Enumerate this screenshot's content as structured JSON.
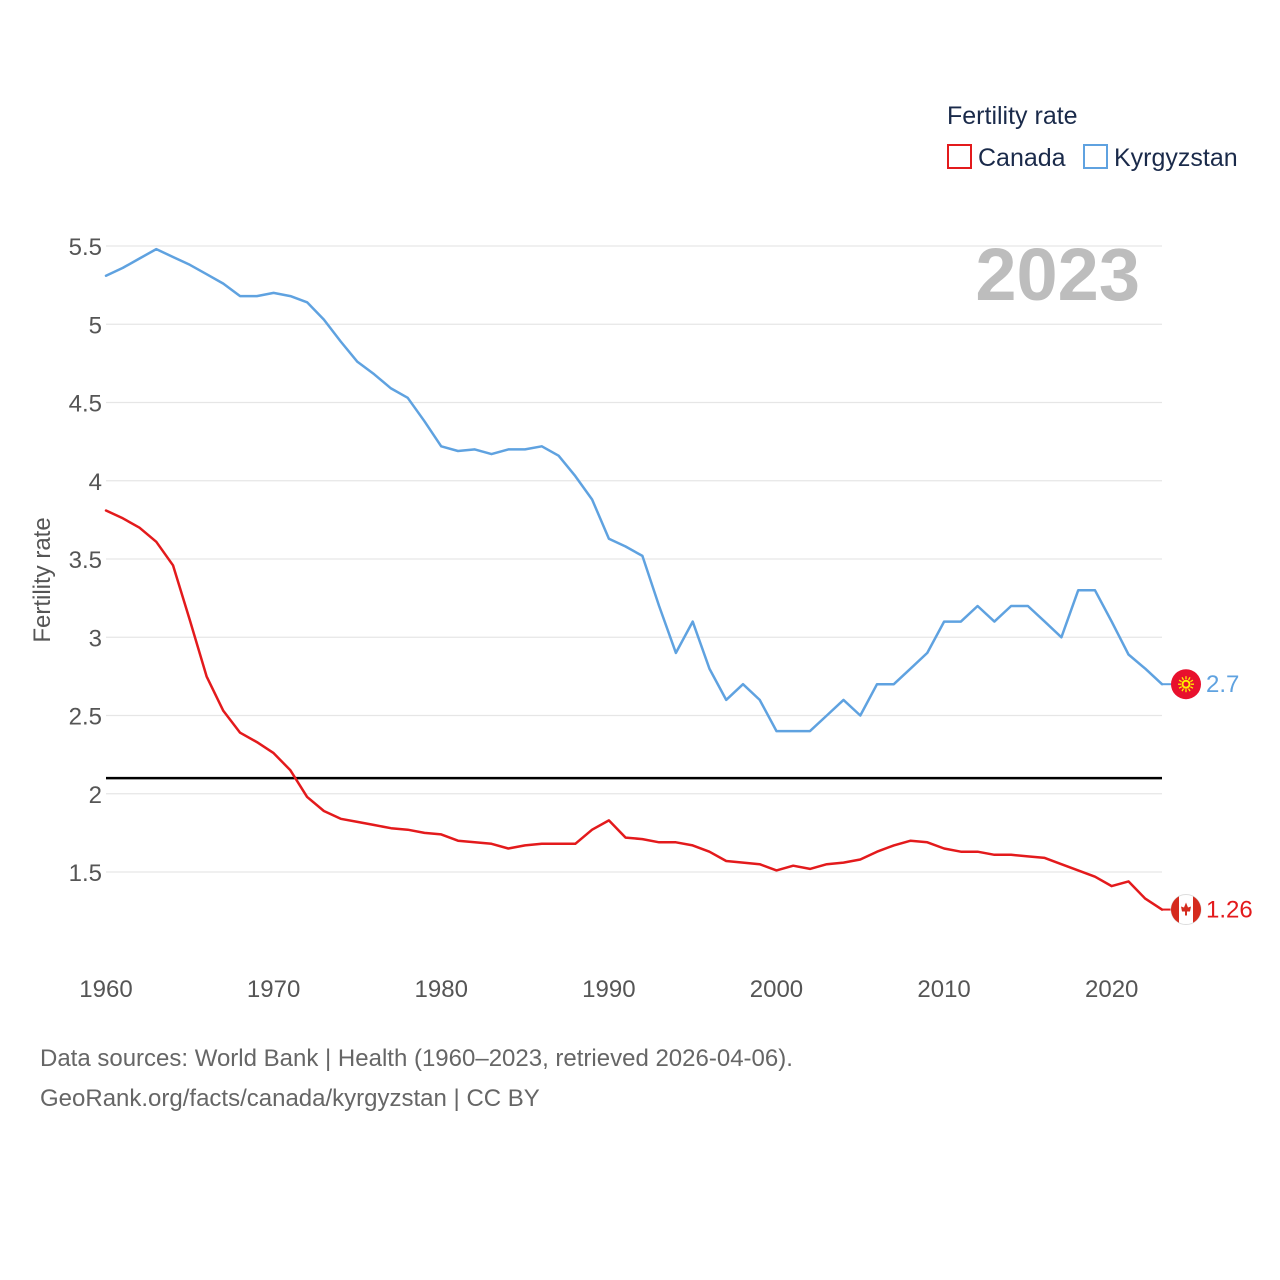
{
  "chart_data": {
    "type": "line",
    "title": "",
    "ylabel": "Fertility rate",
    "xlabel": "",
    "xlim": [
      1960,
      2023
    ],
    "ylim": [
      1.0,
      5.6
    ],
    "y_ticks": [
      1.5,
      2,
      2.5,
      3,
      3.5,
      4,
      4.5,
      5,
      5.5
    ],
    "y_tick_labels": [
      "1.5",
      "2",
      "2.5",
      "3",
      "3.5",
      "4",
      "4.5",
      "5",
      "5.5"
    ],
    "x_ticks": [
      1960,
      1970,
      1980,
      1990,
      2000,
      2010,
      2020
    ],
    "x_tick_labels": [
      "1960",
      "1970",
      "1980",
      "1990",
      "2000",
      "2010",
      "2020"
    ],
    "grid": true,
    "legend_position": "top-right",
    "legend_title": "Fertility rate",
    "year_label": "2023",
    "reference_line": 2.1,
    "x": [
      1960,
      1961,
      1962,
      1963,
      1964,
      1965,
      1966,
      1967,
      1968,
      1969,
      1970,
      1971,
      1972,
      1973,
      1974,
      1975,
      1976,
      1977,
      1978,
      1979,
      1980,
      1981,
      1982,
      1983,
      1984,
      1985,
      1986,
      1987,
      1988,
      1989,
      1990,
      1991,
      1992,
      1993,
      1994,
      1995,
      1996,
      1997,
      1998,
      1999,
      2000,
      2001,
      2002,
      2003,
      2004,
      2005,
      2006,
      2007,
      2008,
      2009,
      2010,
      2011,
      2012,
      2013,
      2014,
      2015,
      2016,
      2017,
      2018,
      2019,
      2020,
      2021,
      2022,
      2023
    ],
    "series": [
      {
        "name": "Canada",
        "color": "#e31a1c",
        "end_label": "1.26",
        "flag": "canada-flag-icon",
        "values": [
          3.81,
          3.76,
          3.7,
          3.61,
          3.46,
          3.11,
          2.75,
          2.53,
          2.39,
          2.33,
          2.26,
          2.15,
          1.98,
          1.89,
          1.84,
          1.82,
          1.8,
          1.78,
          1.77,
          1.75,
          1.74,
          1.7,
          1.69,
          1.68,
          1.65,
          1.67,
          1.68,
          1.68,
          1.68,
          1.77,
          1.83,
          1.72,
          1.71,
          1.69,
          1.69,
          1.67,
          1.63,
          1.57,
          1.56,
          1.55,
          1.51,
          1.54,
          1.52,
          1.55,
          1.56,
          1.58,
          1.63,
          1.67,
          1.7,
          1.69,
          1.65,
          1.63,
          1.63,
          1.61,
          1.61,
          1.6,
          1.59,
          1.55,
          1.51,
          1.47,
          1.41,
          1.44,
          1.33,
          1.26
        ]
      },
      {
        "name": "Kyrgyzstan",
        "color": "#5fa2e0",
        "end_label": "2.7",
        "flag": "kyrgyzstan-flag-icon",
        "values": [
          5.31,
          5.36,
          5.42,
          5.48,
          5.43,
          5.38,
          5.32,
          5.26,
          5.18,
          5.18,
          5.2,
          5.18,
          5.14,
          5.03,
          4.89,
          4.76,
          4.68,
          4.59,
          4.53,
          4.38,
          4.22,
          4.19,
          4.2,
          4.17,
          4.2,
          4.2,
          4.22,
          4.16,
          4.03,
          3.88,
          3.63,
          3.58,
          3.52,
          3.2,
          2.9,
          3.1,
          2.8,
          2.6,
          2.7,
          2.6,
          2.4,
          2.4,
          2.4,
          2.5,
          2.6,
          2.5,
          2.7,
          2.7,
          2.8,
          2.9,
          3.1,
          3.1,
          3.2,
          3.1,
          3.2,
          3.2,
          3.1,
          3.0,
          3.3,
          3.3,
          3.1,
          2.89,
          2.8,
          2.7
        ]
      }
    ]
  },
  "footer": {
    "line1": "Data sources: World Bank | Health (1960–2023, retrieved 2026-04-06).",
    "line2": "GeoRank.org/facts/canada/kyrgyzstan | CC BY"
  }
}
